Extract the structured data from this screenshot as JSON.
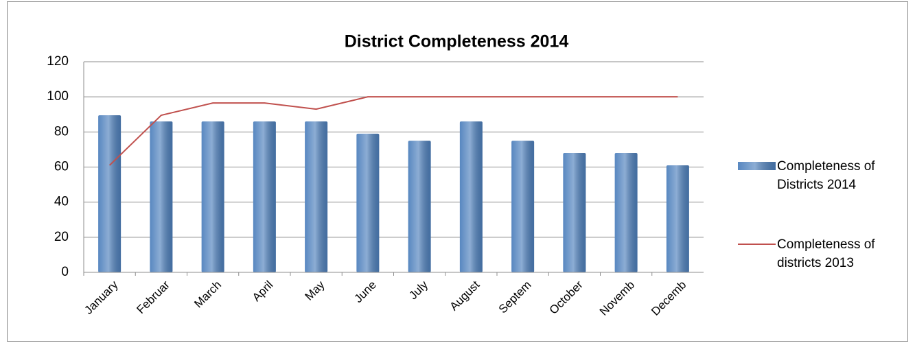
{
  "chart_data": {
    "type": "bar",
    "title": "District Completeness 2014",
    "categories": [
      "January",
      "Februar",
      "March",
      "April",
      "May",
      "June",
      "July",
      "August",
      "Septem",
      "October",
      "Novemb",
      "Decemb"
    ],
    "series": [
      {
        "name": "Completeness of Districts 2014",
        "type": "bar",
        "color": "#4f81bd",
        "values": [
          89.5,
          86,
          86,
          86,
          86,
          79,
          75,
          86,
          75,
          68,
          68,
          61
        ]
      },
      {
        "name": "Completeness of districts 2013",
        "type": "line",
        "color": "#c0504d",
        "values": [
          61,
          89.5,
          96.5,
          96.5,
          93,
          100,
          100,
          100,
          100,
          100,
          100,
          100
        ]
      }
    ],
    "ylim": [
      0,
      120
    ],
    "yticks": [
      0,
      20,
      40,
      60,
      80,
      100,
      120
    ],
    "grid": true,
    "legend": "right"
  }
}
